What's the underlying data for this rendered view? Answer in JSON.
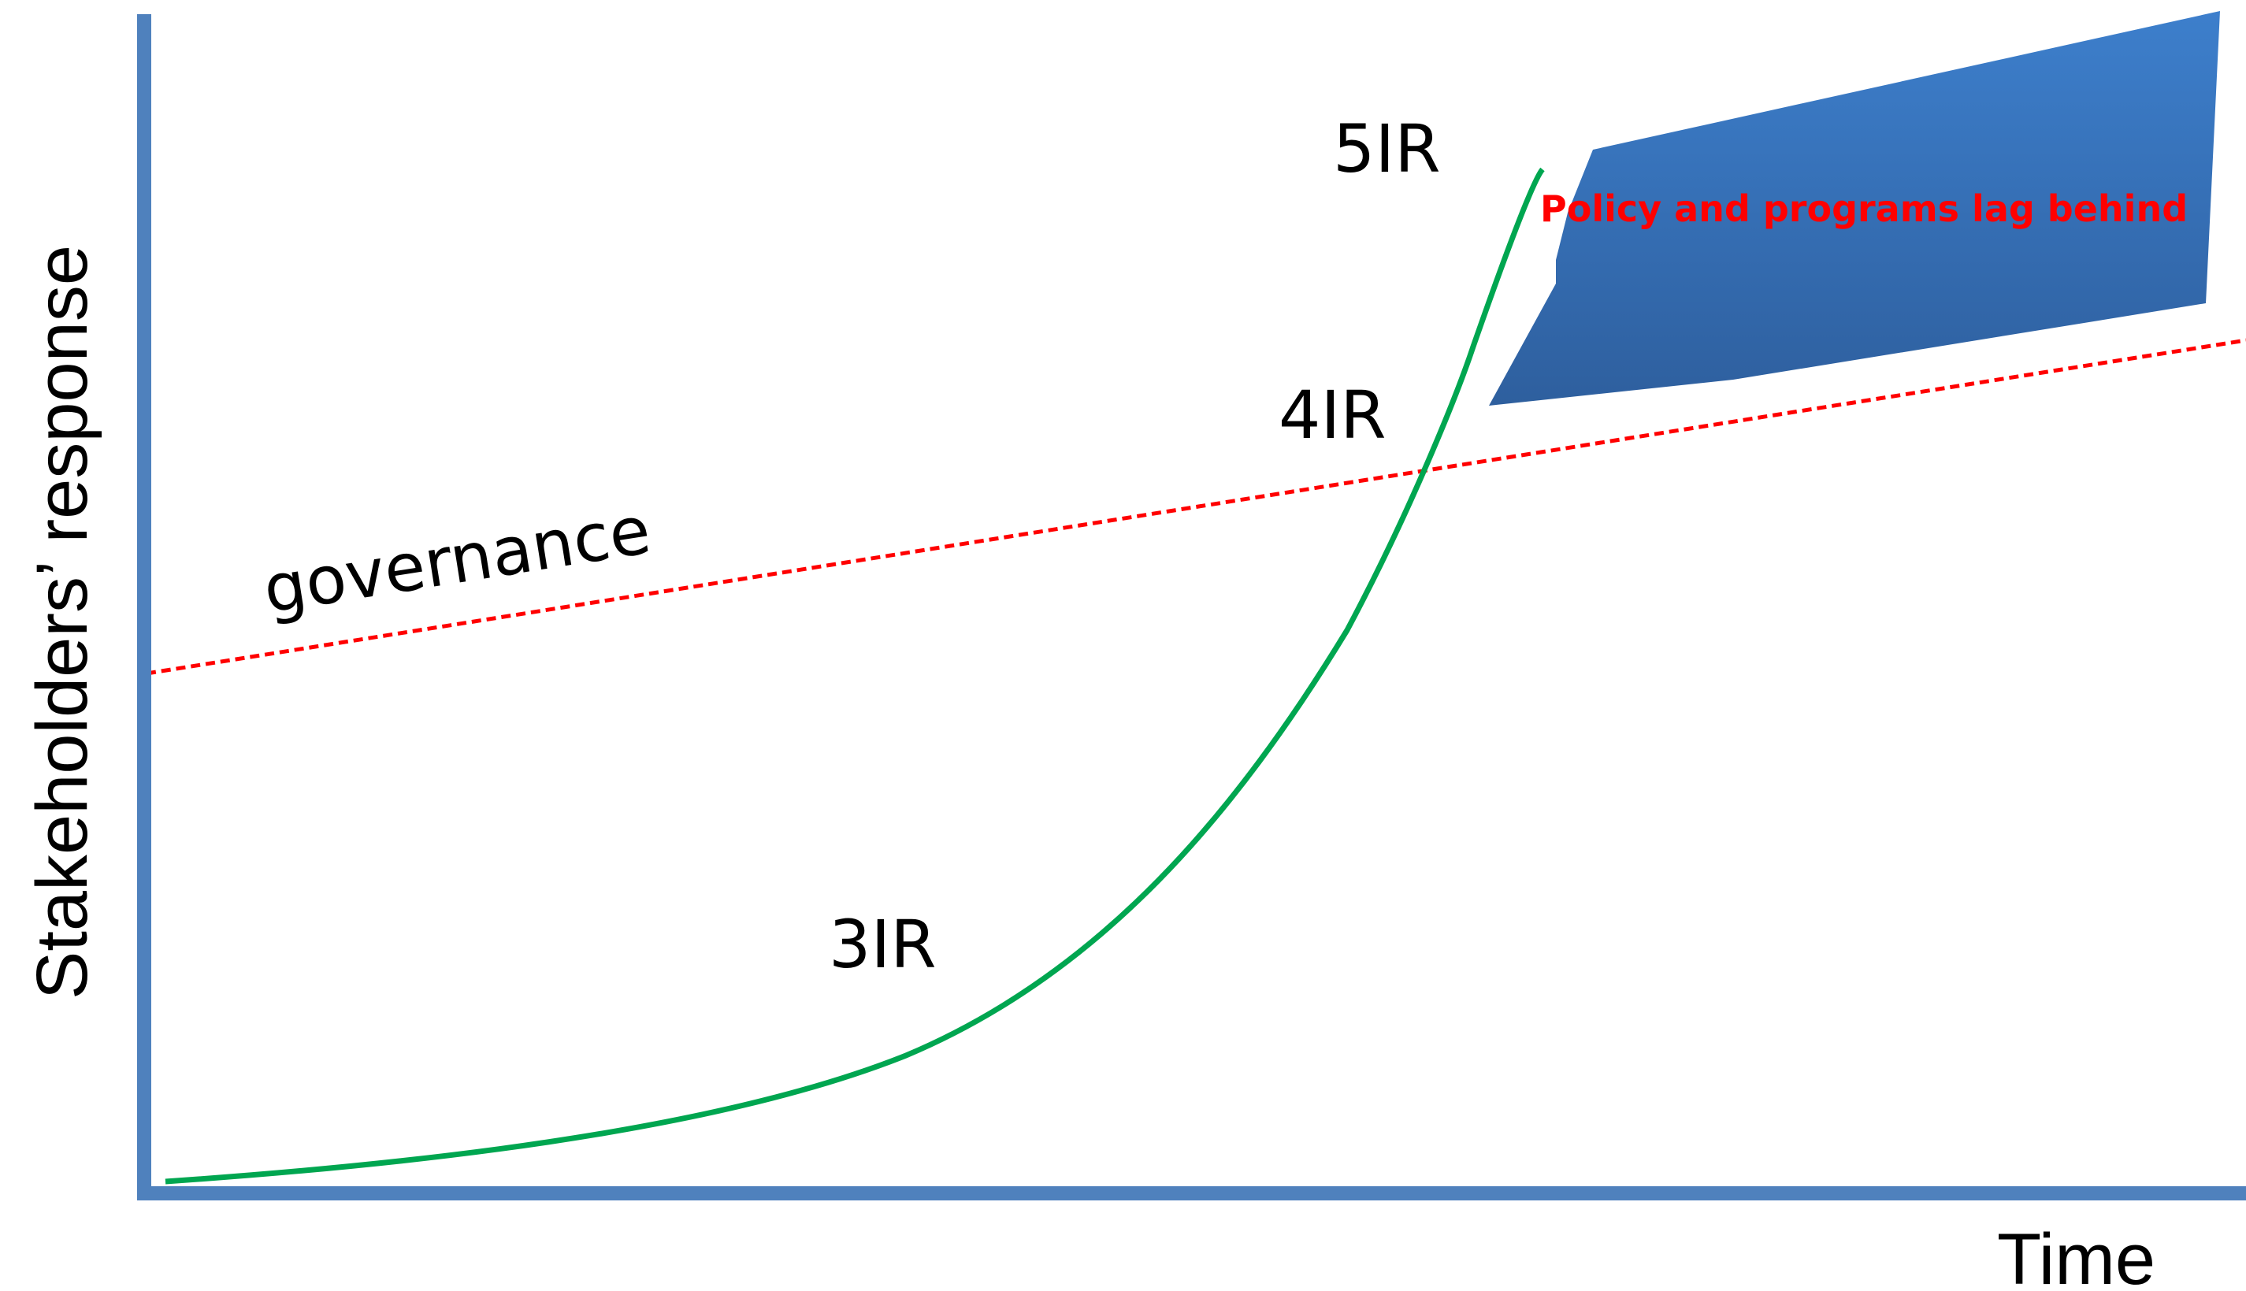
{
  "axes": {
    "y_label": "Stakeholders’ response",
    "x_label": "Time"
  },
  "curves": {
    "governance_label": "governance",
    "technology_labels": [
      "3IR",
      "4IR",
      "5IR"
    ]
  },
  "lag_box": {
    "label": "Policy and programs lag behind"
  },
  "colors": {
    "axis": "#4F81BD",
    "technology_curve": "#00A650",
    "governance_line": "#FF0000",
    "lag_box_top": "#3D7FCC",
    "lag_box_bottom": "#2E5F9E",
    "lag_text": "#FF0000"
  }
}
